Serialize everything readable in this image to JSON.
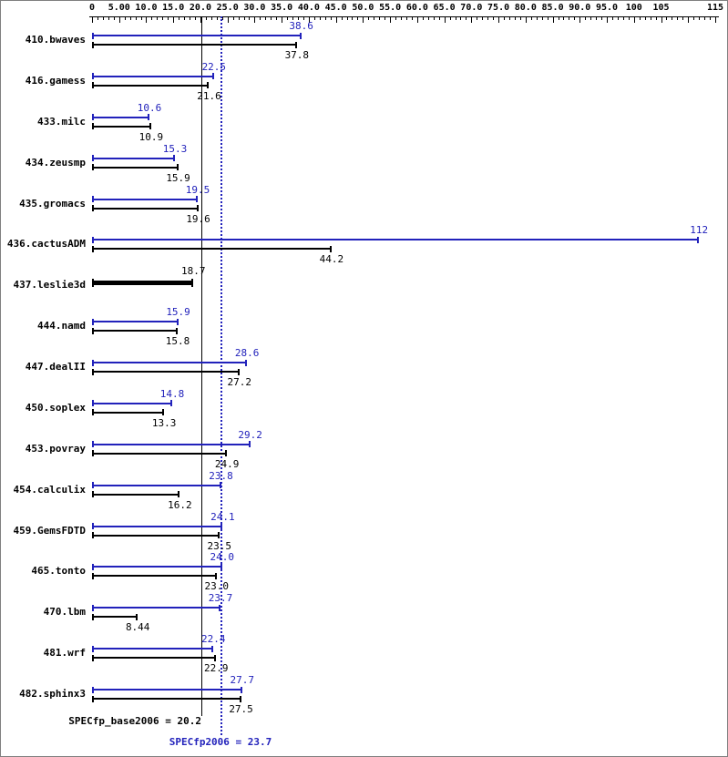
{
  "chart_data": {
    "type": "bar",
    "orientation": "horizontal",
    "title": "",
    "colors": {
      "peak": "#2222bb",
      "base": "#000000"
    },
    "series": [
      {
        "name": "SPECfp2006 (peak)",
        "color": "#2222bb"
      },
      {
        "name": "SPECfp_base2006 (base)",
        "color": "#000000"
      }
    ],
    "x_axis": {
      "min": 0,
      "max": 115,
      "major_tick_step": 5,
      "minor_tick_step": 1,
      "ticks": [
        {
          "value": 0,
          "label": "0"
        },
        {
          "value": 5,
          "label": "5.00"
        },
        {
          "value": 10,
          "label": "10.0"
        },
        {
          "value": 15,
          "label": "15.0"
        },
        {
          "value": 20,
          "label": "20.0"
        },
        {
          "value": 25,
          "label": "25.0"
        },
        {
          "value": 30,
          "label": "30.0"
        },
        {
          "value": 35,
          "label": "35.0"
        },
        {
          "value": 40,
          "label": "40.0"
        },
        {
          "value": 45,
          "label": "45.0"
        },
        {
          "value": 50,
          "label": "50.0"
        },
        {
          "value": 55,
          "label": "55.0"
        },
        {
          "value": 60,
          "label": "60.0"
        },
        {
          "value": 65,
          "label": "65.0"
        },
        {
          "value": 70,
          "label": "70.0"
        },
        {
          "value": 75,
          "label": "75.0"
        },
        {
          "value": 80,
          "label": "80.0"
        },
        {
          "value": 85,
          "label": "85.0"
        },
        {
          "value": 90,
          "label": "90.0"
        },
        {
          "value": 95,
          "label": "95.0"
        },
        {
          "value": 100,
          "label": "100"
        },
        {
          "value": 105,
          "label": "105"
        },
        {
          "value": 115,
          "label": "115"
        }
      ]
    },
    "benchmarks": [
      {
        "label": "410.bwaves",
        "peak": {
          "value": 38.6,
          "text": "38.6"
        },
        "base": {
          "value": 37.8,
          "text": "37.8"
        }
      },
      {
        "label": "416.gamess",
        "peak": {
          "value": 22.5,
          "text": "22.5"
        },
        "base": {
          "value": 21.6,
          "text": "21.6"
        }
      },
      {
        "label": "433.milc",
        "peak": {
          "value": 10.6,
          "text": "10.6"
        },
        "base": {
          "value": 10.9,
          "text": "10.9"
        }
      },
      {
        "label": "434.zeusmp",
        "peak": {
          "value": 15.3,
          "text": "15.3"
        },
        "base": {
          "value": 15.9,
          "text": "15.9"
        }
      },
      {
        "label": "435.gromacs",
        "peak": {
          "value": 19.5,
          "text": "19.5"
        },
        "base": {
          "value": 19.6,
          "text": "19.6"
        }
      },
      {
        "label": "436.cactusADM",
        "peak": {
          "value": 112,
          "text": "112"
        },
        "base": {
          "value": 44.2,
          "text": "44.2"
        }
      },
      {
        "label": "437.leslie3d",
        "single": {
          "value": 18.7,
          "text": "18.7"
        }
      },
      {
        "label": "444.namd",
        "peak": {
          "value": 15.9,
          "text": "15.9"
        },
        "base": {
          "value": 15.8,
          "text": "15.8"
        }
      },
      {
        "label": "447.dealII",
        "peak": {
          "value": 28.6,
          "text": "28.6"
        },
        "base": {
          "value": 27.2,
          "text": "27.2"
        }
      },
      {
        "label": "450.soplex",
        "peak": {
          "value": 14.8,
          "text": "14.8"
        },
        "base": {
          "value": 13.3,
          "text": "13.3"
        }
      },
      {
        "label": "453.povray",
        "peak": {
          "value": 29.2,
          "text": "29.2"
        },
        "base": {
          "value": 24.9,
          "text": "24.9"
        }
      },
      {
        "label": "454.calculix",
        "peak": {
          "value": 23.8,
          "text": "23.8"
        },
        "base": {
          "value": 16.2,
          "text": "16.2"
        }
      },
      {
        "label": "459.GemsFDTD",
        "peak": {
          "value": 24.1,
          "text": "24.1"
        },
        "base": {
          "value": 23.5,
          "text": "23.5"
        }
      },
      {
        "label": "465.tonto",
        "peak": {
          "value": 24.0,
          "text": "24.0"
        },
        "base": {
          "value": 23.0,
          "text": "23.0"
        }
      },
      {
        "label": "470.lbm",
        "peak": {
          "value": 23.7,
          "text": "23.7"
        },
        "base": {
          "value": 8.44,
          "text": "8.44"
        }
      },
      {
        "label": "481.wrf",
        "peak": {
          "value": 22.4,
          "text": "22.4"
        },
        "base": {
          "value": 22.9,
          "text": "22.9"
        }
      },
      {
        "label": "482.sphinx3",
        "peak": {
          "value": 27.7,
          "text": "27.7"
        },
        "base": {
          "value": 27.5,
          "text": "27.5"
        }
      }
    ],
    "reference_lines": [
      {
        "name": "base-mean",
        "value": 20.2,
        "style": "solid",
        "color": "#000000"
      },
      {
        "name": "peak-mean",
        "value": 23.7,
        "style": "dotted",
        "color": "#2222bb"
      }
    ],
    "footer": {
      "base_text": "SPECfp_base2006 = 20.2",
      "peak_text": "SPECfp2006 = 23.7"
    }
  }
}
